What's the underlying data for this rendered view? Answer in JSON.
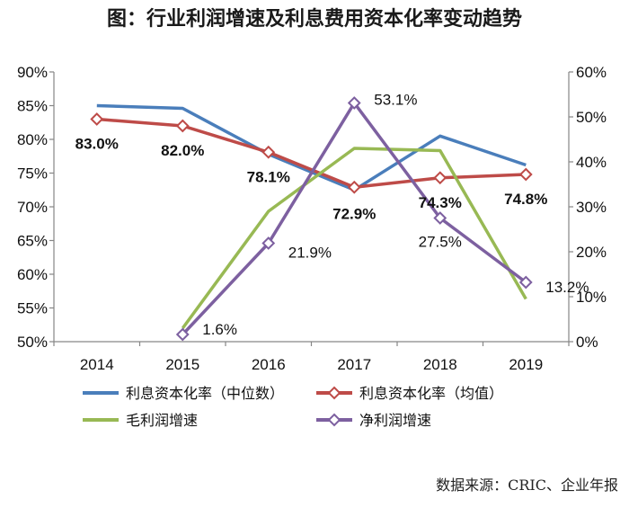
{
  "title": "图：行业利润增速及利息费用资本化率变动趋势",
  "source": "数据来源：CRIC、企业年报",
  "colors": {
    "median": "#4a7ebb",
    "mean": "#be4b48",
    "gross": "#98b954",
    "net": "#7d60a0",
    "axis": "#868686"
  },
  "chart_data": {
    "type": "line",
    "title": "图：行业利润增速及利息费用资本化率变动趋势",
    "categories": [
      "2014",
      "2015",
      "2016",
      "2017",
      "2018",
      "2019"
    ],
    "left_axis": {
      "min": 50,
      "max": 90,
      "step": 5,
      "ticks": [
        "50%",
        "55%",
        "60%",
        "65%",
        "70%",
        "75%",
        "80%",
        "85%",
        "90%"
      ]
    },
    "right_axis": {
      "min": 0,
      "max": 60,
      "step": 10,
      "ticks": [
        "0%",
        "10%",
        "20%",
        "30%",
        "40%",
        "50%",
        "60%"
      ]
    },
    "series": [
      {
        "key": "median",
        "name": "利息资本化率（中位数）",
        "axis": "left",
        "marker": "none",
        "values": [
          85.0,
          84.6,
          77.8,
          72.5,
          80.5,
          76.2
        ],
        "labels": [
          "",
          "",
          "",
          "",
          "",
          ""
        ]
      },
      {
        "key": "mean",
        "name": "利息资本化率（均值）",
        "axis": "left",
        "marker": "diamond",
        "values": [
          83.0,
          82.0,
          78.1,
          72.9,
          74.3,
          74.8
        ],
        "labels": [
          "83.0%",
          "82.0%",
          "78.1%",
          "72.9%",
          "74.3%",
          "74.8%"
        ]
      },
      {
        "key": "gross",
        "name": "毛利润增速",
        "axis": "right",
        "marker": "none",
        "values": [
          null,
          3.0,
          29.0,
          43.0,
          42.5,
          9.5
        ],
        "labels": [
          "",
          "",
          "",
          "",
          "",
          ""
        ]
      },
      {
        "key": "net",
        "name": "净利润增速",
        "axis": "right",
        "marker": "diamond",
        "values": [
          null,
          1.6,
          21.9,
          53.1,
          27.5,
          13.2
        ],
        "labels": [
          "",
          "1.6%",
          "21.9%",
          "53.1%",
          "27.5%",
          "13.2%"
        ]
      }
    ],
    "legend": {
      "position": "bottom",
      "items": [
        "利息资本化率（中位数）",
        "利息资本化率（均值）",
        "毛利润增速",
        "净利润增速"
      ]
    },
    "grid": false
  }
}
